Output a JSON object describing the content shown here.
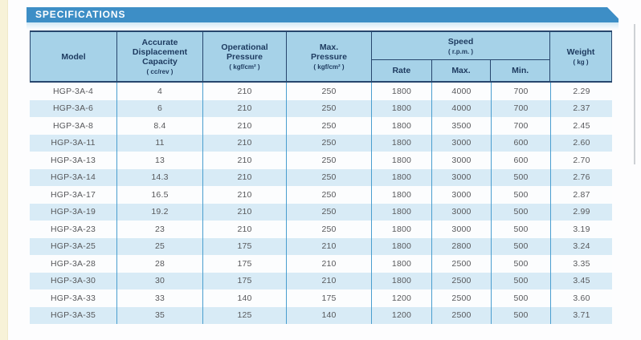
{
  "banner": {
    "title": "SPECIFICATIONS"
  },
  "colors": {
    "banner_blue": "#3d8ec6",
    "header_bg": "#a6d2e8",
    "header_border": "#27466d",
    "header_text": "#1d3a5f",
    "divider_blue": "#4a9ecf",
    "stripe_blue": "#d8ebf6",
    "data_text": "#57585b",
    "page_edge_cream": "#f7f2d8"
  },
  "table": {
    "header": {
      "model": {
        "label": "Model"
      },
      "capacity": {
        "label": "Accurate\nDisplacement\nCapacity",
        "unit": "( cc/rev )"
      },
      "op_pressure": {
        "label": "Operational\nPressure",
        "unit": "( kgf/cm² )"
      },
      "max_pressure": {
        "label": "Max.\nPressure",
        "unit": "( kgf/cm² )"
      },
      "speed": {
        "label": "Speed",
        "unit": "( r.p.m. )",
        "sub": [
          "Rate",
          "Max.",
          "Min."
        ]
      },
      "weight": {
        "label": "Weight",
        "unit": "( kg )"
      }
    },
    "rows": [
      [
        "HGP-3A-4",
        "4",
        "210",
        "250",
        "1800",
        "4000",
        "700",
        "2.29"
      ],
      [
        "HGP-3A-6",
        "6",
        "210",
        "250",
        "1800",
        "4000",
        "700",
        "2.37"
      ],
      [
        "HGP-3A-8",
        "8.4",
        "210",
        "250",
        "1800",
        "3500",
        "700",
        "2.45"
      ],
      [
        "HGP-3A-11",
        "11",
        "210",
        "250",
        "1800",
        "3000",
        "600",
        "2.60"
      ],
      [
        "HGP-3A-13",
        "13",
        "210",
        "250",
        "1800",
        "3000",
        "600",
        "2.70"
      ],
      [
        "HGP-3A-14",
        "14.3",
        "210",
        "250",
        "1800",
        "3000",
        "500",
        "2.76"
      ],
      [
        "HGP-3A-17",
        "16.5",
        "210",
        "250",
        "1800",
        "3000",
        "500",
        "2.87"
      ],
      [
        "HGP-3A-19",
        "19.2",
        "210",
        "250",
        "1800",
        "3000",
        "500",
        "2.99"
      ],
      [
        "HGP-3A-23",
        "23",
        "210",
        "250",
        "1800",
        "3000",
        "500",
        "3.19"
      ],
      [
        "HGP-3A-25",
        "25",
        "175",
        "210",
        "1800",
        "2800",
        "500",
        "3.24"
      ],
      [
        "HGP-3A-28",
        "28",
        "175",
        "210",
        "1800",
        "2500",
        "500",
        "3.35"
      ],
      [
        "HGP-3A-30",
        "30",
        "175",
        "210",
        "1800",
        "2500",
        "500",
        "3.45"
      ],
      [
        "HGP-3A-33",
        "33",
        "140",
        "175",
        "1200",
        "2500",
        "500",
        "3.60"
      ],
      [
        "HGP-3A-35",
        "35",
        "125",
        "140",
        "1200",
        "2500",
        "500",
        "3.71"
      ]
    ]
  }
}
